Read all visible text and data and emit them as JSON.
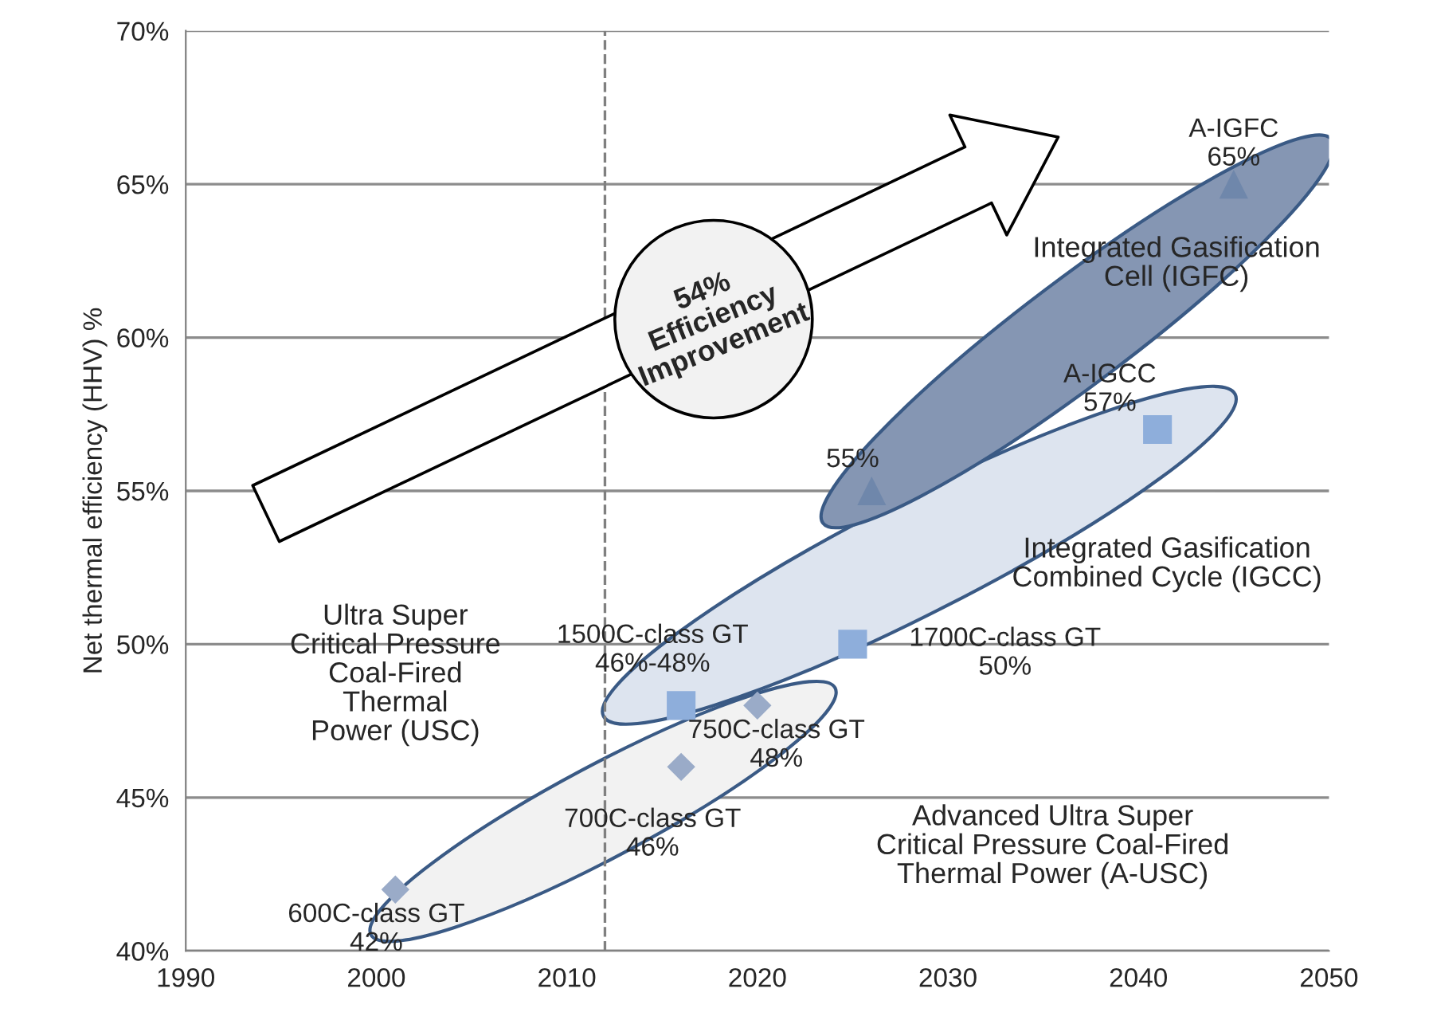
{
  "chart_data": {
    "type": "scatter",
    "ylabel": "Net thermal efficiency (HHV) %",
    "xlim": [
      1990,
      2050
    ],
    "xticks": [
      1990,
      2000,
      2010,
      2020,
      2030,
      2040,
      2050
    ],
    "ylim": [
      40,
      70
    ],
    "yticks": [
      {
        "value": 40,
        "label": "40%"
      },
      {
        "value": 45,
        "label": "45%"
      },
      {
        "value": 50,
        "label": "50%"
      },
      {
        "value": 55,
        "label": "55%"
      },
      {
        "value": 60,
        "label": "60%"
      },
      {
        "value": 65,
        "label": "65%"
      },
      {
        "value": 70,
        "label": "70%"
      }
    ],
    "grid": "y",
    "legend": false,
    "series": [
      {
        "color": "#9aabc8",
        "marker": "diamond",
        "x": [
          2001,
          2016,
          2020
        ],
        "values": [
          42,
          46,
          48
        ]
      },
      {
        "color": "#8eaedb",
        "marker": "square",
        "x": [
          2016,
          2025,
          2041
        ],
        "values": [
          48,
          50,
          57
        ]
      },
      {
        "color": "#6f87ab",
        "marker": "triangle",
        "x": [
          2026,
          2045
        ],
        "values": [
          55,
          65
        ]
      }
    ],
    "ref_lines": [
      {
        "axis": "x",
        "value": 2012,
        "color": "#808080",
        "line_style": "dashed"
      }
    ],
    "annotations": [
      {
        "text": "600C-class GT\n42%",
        "x": 2001,
        "y": 42
      },
      {
        "text": "700C-class GT\n46%",
        "x": 2016,
        "y": 46
      },
      {
        "text": "750C-class GT\n48%",
        "x": 2020,
        "y": 48
      },
      {
        "text": "1500C-class GT\n46%-48%",
        "x": 2016,
        "y": 48
      },
      {
        "text": "1700C-class GT\n50%",
        "x": 2025,
        "y": 50
      },
      {
        "text": "A-IGCC\n57%",
        "x": 2041,
        "y": 57
      },
      {
        "text": "55%",
        "x": 2026,
        "y": 55
      },
      {
        "text": "A-IGFC\n65%",
        "x": 2045,
        "y": 65
      },
      "Ultra Super\nCritical Pressure\nCoal-Fired\nThermal\nPower (USC)",
      "Advanced Ultra Super\nCritical Pressure Coal-Fired\nThermal Power (A-USC)",
      "Integrated Gasification\nCombined Cycle (IGCC)",
      "Integrated Gasification\nCell (IGFC)",
      "54%\nEfficiency\nImprovement"
    ]
  }
}
